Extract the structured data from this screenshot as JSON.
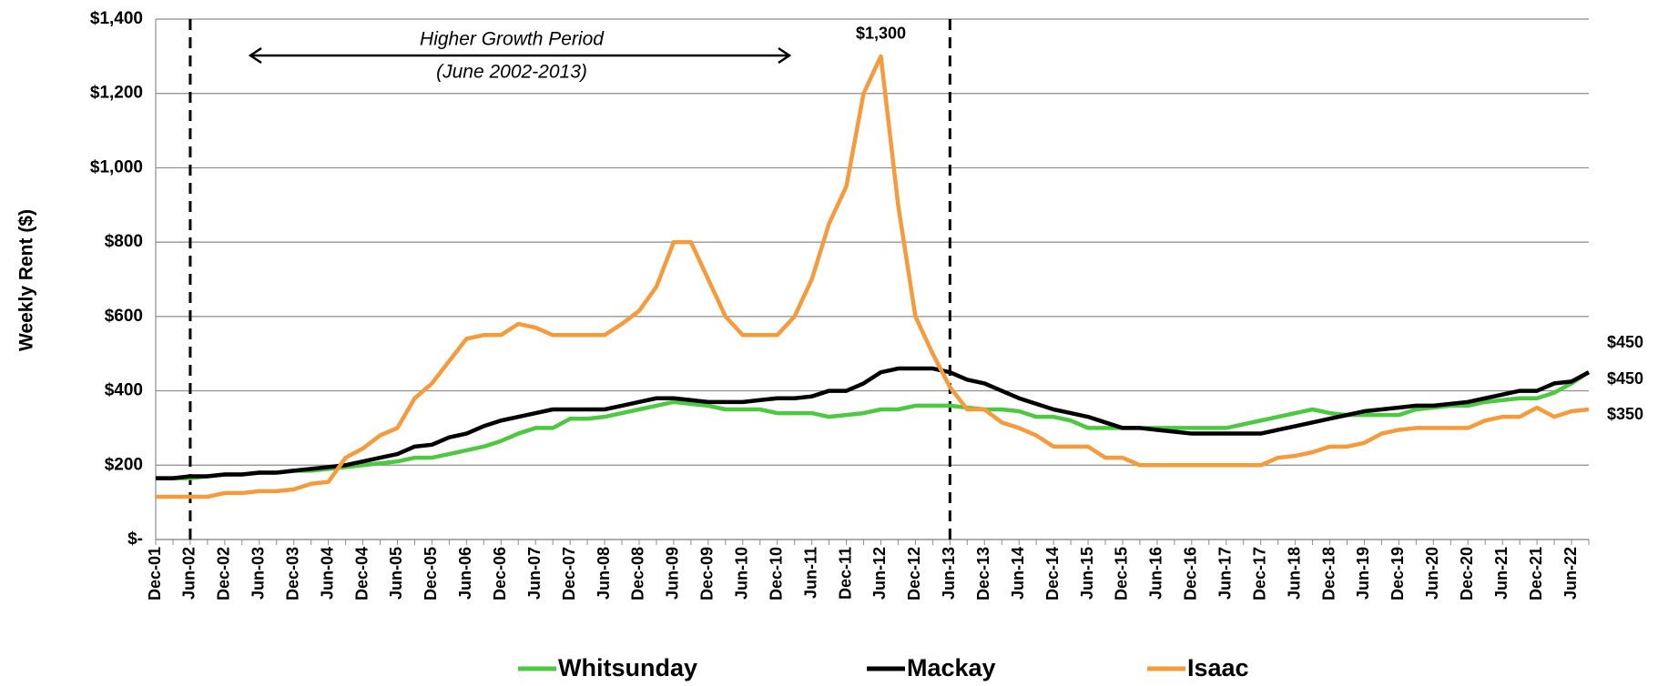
{
  "chart_data": {
    "type": "line",
    "y_label": "Weekly Rent ($)",
    "categories": [
      "Dec-01",
      null,
      "Jun-02",
      null,
      "Dec-02",
      null,
      "Jun-03",
      null,
      "Dec-03",
      null,
      "Jun-04",
      null,
      "Dec-04",
      null,
      "Jun-05",
      null,
      "Dec-05",
      null,
      "Jun-06",
      null,
      "Dec-06",
      null,
      "Jun-07",
      null,
      "Dec-07",
      null,
      "Jun-08",
      null,
      "Dec-08",
      null,
      "Jun-09",
      null,
      "Dec-09",
      null,
      "Jun-10",
      null,
      "Dec-10",
      null,
      "Jun-11",
      null,
      "Dec-11",
      null,
      "Jun-12",
      null,
      "Dec-12",
      null,
      "Jun-13",
      null,
      "Dec-13",
      null,
      "Jun-14",
      null,
      "Dec-14",
      null,
      "Jun-15",
      null,
      "Dec-15",
      null,
      "Jun-16",
      null,
      "Dec-16",
      null,
      "Jun-17",
      null,
      "Dec-17",
      null,
      "Jun-18",
      null,
      "Dec-18",
      null,
      "Jun-19",
      null,
      "Dec-19",
      null,
      "Jun-20",
      null,
      "Dec-20",
      null,
      "Jun-21",
      null,
      "Dec-21",
      null,
      "Jun-22",
      null
    ],
    "series": [
      {
        "name": "Whitsunday",
        "color": "#4cc940",
        "values": [
          165,
          165,
          165,
          170,
          175,
          175,
          180,
          180,
          185,
          185,
          190,
          195,
          200,
          205,
          210,
          220,
          220,
          230,
          240,
          250,
          265,
          285,
          300,
          300,
          325,
          325,
          330,
          340,
          350,
          360,
          370,
          365,
          360,
          350,
          350,
          350,
          340,
          340,
          340,
          330,
          335,
          340,
          350,
          350,
          360,
          360,
          360,
          355,
          350,
          350,
          345,
          330,
          330,
          320,
          300,
          300,
          300,
          300,
          300,
          300,
          300,
          300,
          300,
          310,
          320,
          330,
          340,
          350,
          340,
          335,
          335,
          335,
          335,
          350,
          355,
          360,
          360,
          370,
          375,
          380,
          380,
          395,
          420,
          450
        ],
        "value_labels": [
          null,
          null,
          null,
          null,
          null,
          null,
          null,
          null,
          null,
          null,
          null,
          null,
          null,
          null,
          null,
          null,
          null,
          null,
          null,
          null,
          null,
          null,
          null,
          null,
          null,
          null,
          null,
          null,
          null,
          null,
          null,
          null,
          null,
          null,
          null,
          null,
          null,
          null,
          null,
          null,
          null,
          null,
          null,
          null,
          null,
          null,
          null,
          null,
          null,
          null,
          null,
          null,
          null,
          null,
          null,
          null,
          null,
          null,
          null,
          null,
          null,
          null,
          null,
          null,
          null,
          null,
          null,
          null,
          null,
          null,
          null,
          null,
          null,
          null,
          null,
          null,
          null,
          null,
          null,
          null,
          null,
          null,
          null,
          "$450"
        ]
      },
      {
        "name": "Mackay",
        "color": "#000000",
        "values": [
          165,
          165,
          170,
          170,
          175,
          175,
          180,
          180,
          185,
          190,
          195,
          200,
          210,
          220,
          230,
          250,
          255,
          275,
          285,
          305,
          320,
          330,
          340,
          350,
          350,
          350,
          350,
          360,
          370,
          380,
          380,
          375,
          370,
          370,
          370,
          375,
          380,
          380,
          385,
          400,
          400,
          420,
          450,
          460,
          460,
          460,
          450,
          430,
          420,
          400,
          380,
          365,
          350,
          340,
          330,
          315,
          300,
          300,
          295,
          290,
          285,
          285,
          285,
          285,
          285,
          295,
          305,
          315,
          325,
          335,
          345,
          350,
          355,
          360,
          360,
          365,
          370,
          380,
          390,
          400,
          400,
          420,
          425,
          450
        ],
        "value_labels": [
          null,
          null,
          null,
          null,
          null,
          null,
          null,
          null,
          null,
          null,
          null,
          null,
          null,
          null,
          null,
          null,
          null,
          null,
          null,
          null,
          null,
          null,
          null,
          null,
          null,
          null,
          null,
          null,
          null,
          null,
          null,
          null,
          null,
          null,
          null,
          null,
          null,
          null,
          null,
          null,
          null,
          null,
          null,
          null,
          null,
          null,
          null,
          null,
          null,
          null,
          null,
          null,
          null,
          null,
          null,
          null,
          null,
          null,
          null,
          null,
          null,
          null,
          null,
          null,
          null,
          null,
          null,
          null,
          null,
          null,
          null,
          null,
          null,
          null,
          null,
          null,
          null,
          null,
          null,
          null,
          null,
          null,
          null,
          "$450"
        ]
      },
      {
        "name": "Isaac",
        "color": "#f79a3c",
        "values": [
          115,
          115,
          115,
          115,
          125,
          125,
          130,
          130,
          135,
          150,
          155,
          220,
          245,
          280,
          300,
          380,
          420,
          480,
          540,
          550,
          550,
          580,
          570,
          550,
          550,
          550,
          550,
          580,
          615,
          680,
          800,
          800,
          700,
          600,
          550,
          550,
          550,
          600,
          700,
          850,
          950,
          1200,
          1300,
          900,
          600,
          500,
          410,
          350,
          350,
          315,
          300,
          280,
          250,
          250,
          250,
          220,
          220,
          200,
          200,
          200,
          200,
          200,
          200,
          200,
          200,
          220,
          225,
          235,
          250,
          250,
          260,
          285,
          295,
          300,
          300,
          300,
          300,
          320,
          330,
          330,
          355,
          330,
          345,
          350
        ],
        "value_labels": [
          null,
          null,
          null,
          null,
          null,
          null,
          null,
          null,
          null,
          null,
          null,
          null,
          null,
          null,
          null,
          null,
          null,
          null,
          null,
          null,
          null,
          null,
          null,
          null,
          null,
          null,
          null,
          null,
          null,
          null,
          null,
          null,
          null,
          null,
          null,
          null,
          null,
          null,
          null,
          null,
          null,
          null,
          "$1,300",
          null,
          null,
          null,
          null,
          null,
          null,
          null,
          null,
          null,
          null,
          null,
          null,
          null,
          null,
          null,
          null,
          null,
          null,
          null,
          null,
          null,
          null,
          null,
          null,
          null,
          null,
          null,
          null,
          null,
          null,
          null,
          null,
          null,
          null,
          null,
          null,
          null,
          null,
          null,
          null,
          "$350"
        ]
      }
    ],
    "ylim": [
      0,
      1400
    ],
    "yticks": [
      {
        "value": 0,
        "label": "$-"
      },
      {
        "value": 200,
        "label": "$200"
      },
      {
        "value": 400,
        "label": "$400"
      },
      {
        "value": 600,
        "label": "$600"
      },
      {
        "value": 800,
        "label": "$800"
      },
      {
        "value": 1000,
        "label": "$1,000"
      },
      {
        "value": 1200,
        "label": "$1,200"
      },
      {
        "value": 1400,
        "label": "$1,400"
      }
    ],
    "grid": true,
    "highlight_period": {
      "start": "Jun-02",
      "end": "Jun-13",
      "label": "Higher Growth Period",
      "sublabel": "(June 2002-2013)"
    }
  }
}
